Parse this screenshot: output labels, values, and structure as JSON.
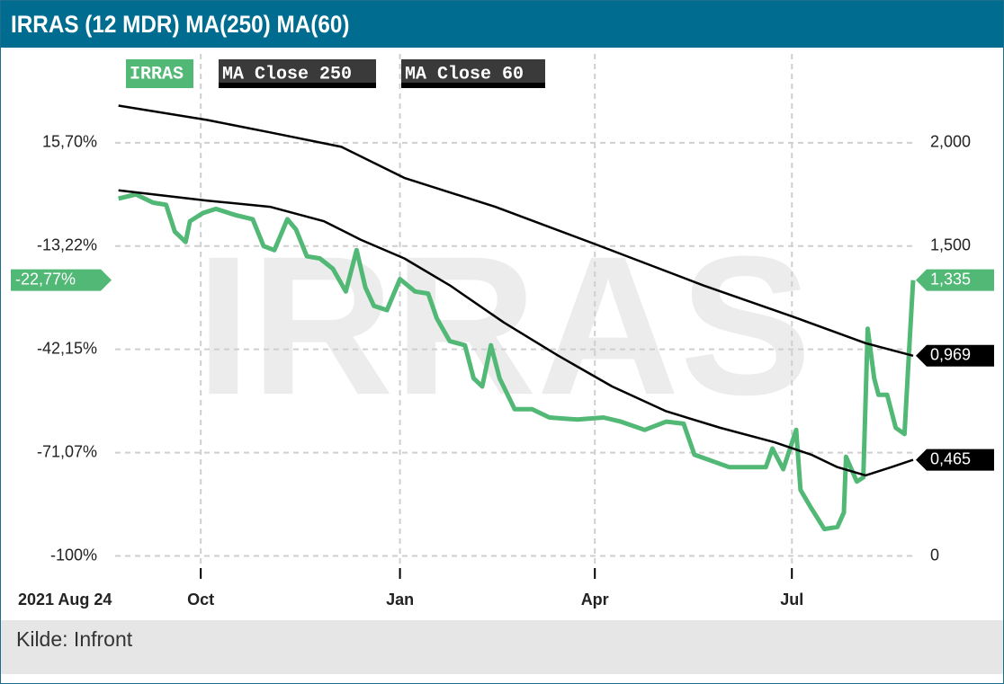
{
  "chart_data": {
    "type": "line",
    "title": "IRRAS (12 MDR) MA(250) MA(60)",
    "watermark": "IRRAS",
    "source": "Kilde: Infront",
    "xlim": [
      0,
      367
    ],
    "xticks": [
      {
        "value": 0,
        "label": "2021 Aug 24"
      },
      {
        "value": 38,
        "label": "Oct"
      },
      {
        "value": 130,
        "label": "Jan"
      },
      {
        "value": 220,
        "label": "Apr"
      },
      {
        "value": 311,
        "label": "Jul"
      }
    ],
    "ylim": [
      -102.89,
      40.58
    ],
    "yticks": [
      {
        "value": 15.7,
        "label": "15,70%"
      },
      {
        "value": -13.22,
        "label": "-13,22%"
      },
      {
        "value": -42.15,
        "label": "-42,15%"
      },
      {
        "value": -71.07,
        "label": "-71,07%"
      },
      {
        "value": -100,
        "label": "-100%"
      }
    ],
    "y2lim": [
      -0.05,
      2.43
    ],
    "y2ticks": [
      {
        "value": 2,
        "label": "2,000"
      },
      {
        "value": 1.5,
        "label": "1,500"
      },
      0
    ],
    "grid": true,
    "series": [
      {
        "name": "IRRAS",
        "color": "#52b876",
        "axis": "y2",
        "x": [
          0,
          8,
          16,
          22,
          26,
          31,
          33,
          39,
          45,
          54,
          62,
          67,
          72,
          78,
          82,
          87,
          93,
          99,
          105,
          110,
          114,
          118,
          124,
          130,
          137,
          143,
          147,
          153,
          160,
          164,
          168,
          172,
          176,
          183,
          191,
          199,
          212,
          224,
          232,
          243,
          253,
          261,
          266,
          274,
          282,
          291,
          299,
          302,
          307,
          313,
          315,
          320,
          326,
          332,
          335,
          336,
          341,
          344,
          346,
          349,
          351,
          355,
          359,
          363,
          365,
          367
        ],
        "values": [
          1.73,
          1.75,
          1.71,
          1.7,
          1.57,
          1.52,
          1.62,
          1.66,
          1.68,
          1.65,
          1.63,
          1.5,
          1.48,
          1.63,
          1.58,
          1.45,
          1.44,
          1.39,
          1.28,
          1.48,
          1.3,
          1.21,
          1.19,
          1.34,
          1.28,
          1.27,
          1.15,
          1.04,
          1.02,
          0.86,
          0.82,
          1.02,
          0.86,
          0.71,
          0.71,
          0.67,
          0.66,
          0.67,
          0.65,
          0.61,
          0.65,
          0.64,
          0.49,
          0.46,
          0.43,
          0.43,
          0.43,
          0.52,
          0.42,
          0.61,
          0.32,
          0.23,
          0.13,
          0.14,
          0.21,
          0.48,
          0.36,
          0.38,
          1.1,
          0.86,
          0.78,
          0.78,
          0.62,
          0.59,
          0.97,
          1.335
        ],
        "end_label": {
          "value": 1.335,
          "label": "1,335"
        },
        "end_label_pct": {
          "value": -22.77,
          "label": "-22,77%"
        }
      },
      {
        "name": "MA Close 250",
        "color": "#000000",
        "axis": "y2",
        "x": [
          0,
          41,
          70,
          103,
          132,
          174,
          220,
          270,
          311,
          345,
          367
        ],
        "values": [
          2.18,
          2.11,
          2.05,
          1.98,
          1.83,
          1.69,
          1.51,
          1.31,
          1.16,
          1.03,
          0.969
        ],
        "end_label": {
          "value": 0.969,
          "label": "0,969"
        }
      },
      {
        "name": "MA Close 60",
        "color": "#000000",
        "axis": "y2",
        "x": [
          0,
          41,
          70,
          95,
          112,
          132,
          153,
          178,
          203,
          228,
          253,
          278,
          303,
          320,
          332,
          345,
          357,
          367
        ],
        "values": [
          1.77,
          1.72,
          1.69,
          1.62,
          1.53,
          1.44,
          1.31,
          1.13,
          0.97,
          0.82,
          0.7,
          0.62,
          0.55,
          0.49,
          0.43,
          0.39,
          0.43,
          0.465
        ],
        "end_label": {
          "value": 0.465,
          "label": "0,465"
        }
      }
    ]
  }
}
